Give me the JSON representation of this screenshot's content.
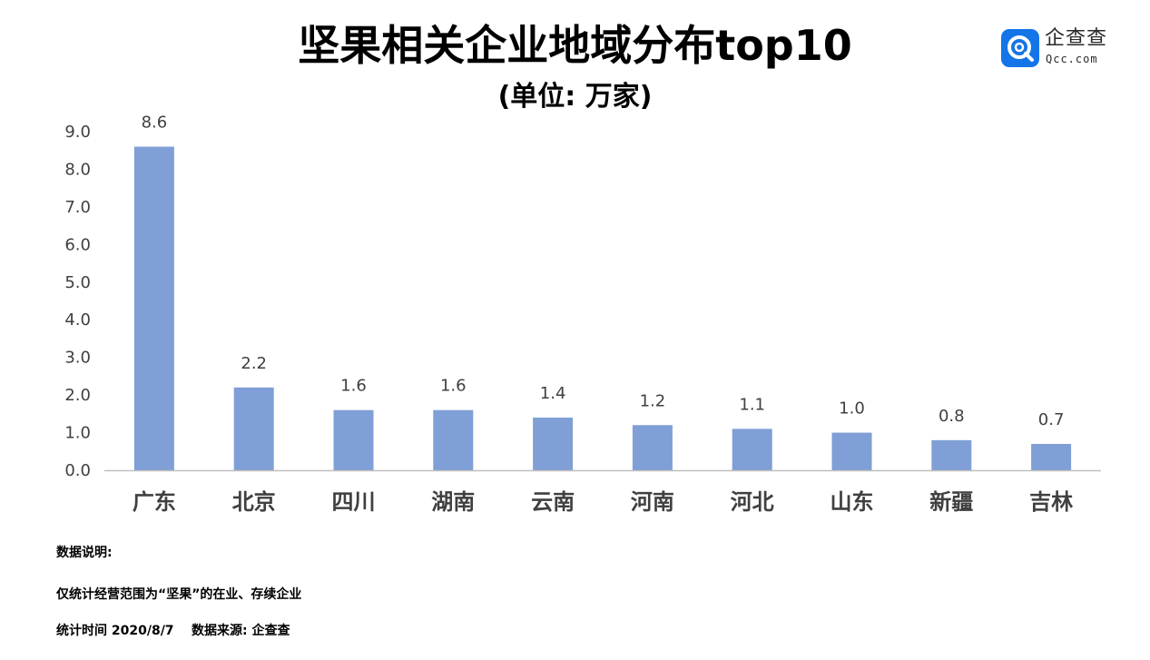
{
  "logo": {
    "name_cn": "企查查",
    "name_en": "Qcc.com",
    "badge_color": "#1475e8"
  },
  "notes": {
    "heading": "数据说明:",
    "scope": "仅统计经营范围为“坚果”的在业、存续企业",
    "footer": "统计时间 2020/8/7    数据来源: 企查查"
  },
  "chart_data": {
    "type": "bar",
    "title": "坚果相关企业地域分布top10",
    "subtitle": "(单位: 万家)",
    "categories": [
      "广东",
      "北京",
      "四川",
      "湖南",
      "云南",
      "河南",
      "河北",
      "山东",
      "新疆",
      "吉林"
    ],
    "values": [
      8.6,
      2.2,
      1.6,
      1.6,
      1.4,
      1.2,
      1.1,
      1.0,
      0.8,
      0.7
    ],
    "value_labels": [
      "8.6",
      "2.2",
      "1.6",
      "1.6",
      "1.4",
      "1.2",
      "1.1",
      "1.0",
      "0.8",
      "0.7"
    ],
    "ylim": [
      0,
      9
    ],
    "yticks": [
      "0.0",
      "1.0",
      "2.0",
      "3.0",
      "4.0",
      "5.0",
      "6.0",
      "7.0",
      "8.0",
      "9.0"
    ],
    "grid": false,
    "bar_color": "#7f9fd6"
  }
}
